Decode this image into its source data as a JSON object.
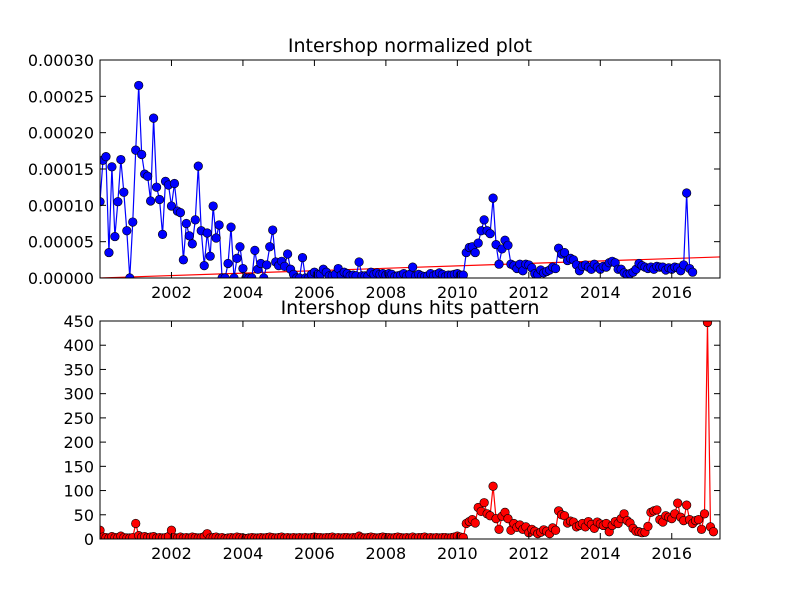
{
  "chart_data": [
    {
      "type": "line",
      "title": "Intershop normalized plot",
      "xlabel": "",
      "ylabel": "",
      "xlim": [
        2000.0,
        2017.35
      ],
      "ylim": [
        0,
        0.0003
      ],
      "grid": false,
      "x_tick_labels": [
        "2002",
        "2004",
        "2006",
        "2008",
        "2010",
        "2012",
        "2014",
        "2016"
      ],
      "y_tick_labels": [
        "0.00000",
        "0.00005",
        "0.00010",
        "0.00015",
        "0.00020",
        "0.00025",
        "0.00030"
      ],
      "colors": {
        "series": "#0000ff",
        "trend": "#ff0000",
        "marker_edge": "#000000"
      },
      "series": [
        {
          "x_start": 2000.0,
          "x_step_months": 1,
          "values": [
            0.000105,
            0.000162,
            0.000167,
            3.5e-05,
            0.000153,
            5.7e-05,
            0.000105,
            0.000163,
            0.000118,
            6.5e-05,
            0.0,
            7.7e-05,
            0.000176,
            0.000265,
            0.00017,
            0.000143,
            0.00014,
            0.000106,
            0.00022,
            0.000125,
            0.000108,
            6e-05,
            0.000133,
            0.000128,
            9.9e-05,
            0.00013,
            9.2e-05,
            9e-05,
            2.5e-05,
            7.5e-05,
            5.8e-05,
            4.7e-05,
            8e-05,
            0.000154,
            6.5e-05,
            1.7e-05,
            6.2e-05,
            3e-05,
            9.9e-05,
            5.5e-05,
            7.3e-05,
            0.0,
            0.0,
            2e-05,
            7e-05,
            0.0,
            2.7e-05,
            4.3e-05,
            1.3e-05,
            0.0,
            0.0,
            0.0,
            3.8e-05,
            1.2e-05,
            2e-05,
            0.0,
            1.8e-05,
            4.3e-05,
            6.6e-05,
            2.2e-05,
            1.7e-05,
            2.3e-05,
            1.6e-05,
            3.3e-05,
            1.2e-05,
            5e-06,
            0.0,
            0.0,
            2.8e-05,
            0.0,
            0.0,
            5e-06,
            8e-06,
            5e-06,
            5e-06,
            1.2e-05,
            8e-06,
            3e-06,
            3e-06,
            5e-06,
            1.3e-05,
            4e-06,
            8e-06,
            6e-06,
            3e-06,
            4e-06,
            3e-06,
            2.2e-05,
            3e-06,
            3e-06,
            3e-06,
            8e-06,
            5e-06,
            7e-06,
            5e-06,
            6e-06,
            4e-06,
            6e-06,
            5e-06,
            2e-06,
            3e-06,
            4e-06,
            6e-06,
            3e-06,
            5e-06,
            1.5e-05,
            3e-06,
            5e-06,
            3e-06,
            2e-06,
            3e-06,
            6e-06,
            3e-06,
            5e-06,
            7e-06,
            5e-06,
            2e-06,
            4e-06,
            4e-06,
            5e-06,
            6e-06,
            4e-06,
            4e-06,
            3.5e-05,
            4.2e-05,
            4.3e-05,
            3.5e-05,
            4.8e-05,
            6.5e-05,
            8e-05,
            6.5e-05,
            6.1e-05,
            0.00011,
            4.6e-05,
            1.9e-05,
            4e-05,
            5.2e-05,
            4.5e-05,
            1.9e-05,
            1.7e-05,
            1.3e-05,
            1.9e-05,
            1e-05,
            1.9e-05,
            1.8e-05,
            1.4e-05,
            6e-06,
            5e-06,
            1.1e-05,
            7e-06,
            9e-06,
            1.1e-05,
            1.5e-05,
            1.3e-05,
            4.1e-05,
            3.3e-05,
            3.5e-05,
            2.4e-05,
            2.7e-05,
            2.5e-05,
            1.8e-05,
            1e-05,
            1.6e-05,
            1.8e-05,
            1.5e-05,
            1.2e-05,
            1.9e-05,
            1.5e-05,
            1.2e-05,
            1.6e-05,
            1.5e-05,
            2.1e-05,
            2.3e-05,
            2.1e-05,
            1.2e-05,
            1.2e-05,
            7e-06,
            5e-06,
            6e-06,
            8e-06,
            1.2e-05,
            2e-05,
            1.7e-05,
            1.5e-05,
            1.3e-05,
            1.5e-05,
            1.2e-05,
            1.6e-05,
            1.5e-05,
            1.5e-05,
            1.1e-05,
            1.4e-05,
            1.2e-05,
            1.5e-05,
            1.4e-05,
            1e-05,
            1.8e-05,
            0.000117,
            1.3e-05,
            8e-06
          ]
        }
      ],
      "trend_line": {
        "x": [
          2000.0,
          2017.35
        ],
        "y": [
          0.0,
          2.9e-05
        ]
      }
    },
    {
      "type": "line",
      "title": "Intershop duns hits pattern",
      "xlabel": "",
      "ylabel": "",
      "xlim": [
        2000.0,
        2017.35
      ],
      "ylim": [
        0,
        450
      ],
      "grid": false,
      "x_tick_labels": [
        "2002",
        "2004",
        "2006",
        "2008",
        "2010",
        "2012",
        "2014",
        "2016"
      ],
      "y_tick_labels": [
        "0",
        "50",
        "100",
        "150",
        "200",
        "250",
        "300",
        "350",
        "400",
        "450"
      ],
      "colors": {
        "series": "#ff0000",
        "marker_edge": "#000000"
      },
      "series": [
        {
          "x_start": 2000.0,
          "x_step_months": 1,
          "values": [
            18,
            4,
            3,
            2,
            5,
            3,
            3,
            6,
            3,
            2,
            2,
            3,
            32,
            7,
            4,
            5,
            3,
            4,
            5,
            2,
            3,
            2,
            3,
            5,
            18,
            3,
            2,
            4,
            2,
            3,
            2,
            4,
            3,
            2,
            3,
            5,
            11,
            2,
            3,
            4,
            2,
            3,
            1,
            2,
            3,
            2,
            4,
            3,
            2,
            1,
            2,
            3,
            2,
            2,
            3,
            2,
            3,
            4,
            3,
            2,
            3,
            4,
            2,
            3,
            2,
            3,
            2,
            3,
            2,
            3,
            2,
            3,
            4,
            3,
            3,
            2,
            3,
            3,
            4,
            2,
            3,
            2,
            3,
            3,
            2,
            3,
            3,
            6,
            3,
            2,
            3,
            4,
            3,
            2,
            3,
            4,
            3,
            3,
            2,
            3,
            4,
            3,
            2,
            3,
            2,
            4,
            2,
            3,
            3,
            4,
            2,
            3,
            2,
            3,
            2,
            3,
            3,
            2,
            3,
            4,
            6,
            4,
            3,
            32,
            36,
            40,
            33,
            65,
            57,
            75,
            52,
            48,
            109,
            42,
            20,
            47,
            55,
            42,
            18,
            32,
            24,
            29,
            20,
            25,
            13,
            20,
            16,
            11,
            14,
            19,
            16,
            11,
            23,
            18,
            58,
            50,
            48,
            33,
            37,
            35,
            25,
            28,
            32,
            25,
            36,
            30,
            22,
            35,
            31,
            28,
            32,
            15,
            28,
            36,
            32,
            42,
            52,
            38,
            33,
            22,
            16,
            15,
            13,
            14,
            26,
            55,
            58,
            60,
            40,
            35,
            48,
            45,
            42,
            52,
            74,
            45,
            38,
            70,
            40,
            32,
            38,
            40,
            20,
            52,
            447,
            25,
            15
          ]
        }
      ]
    }
  ]
}
